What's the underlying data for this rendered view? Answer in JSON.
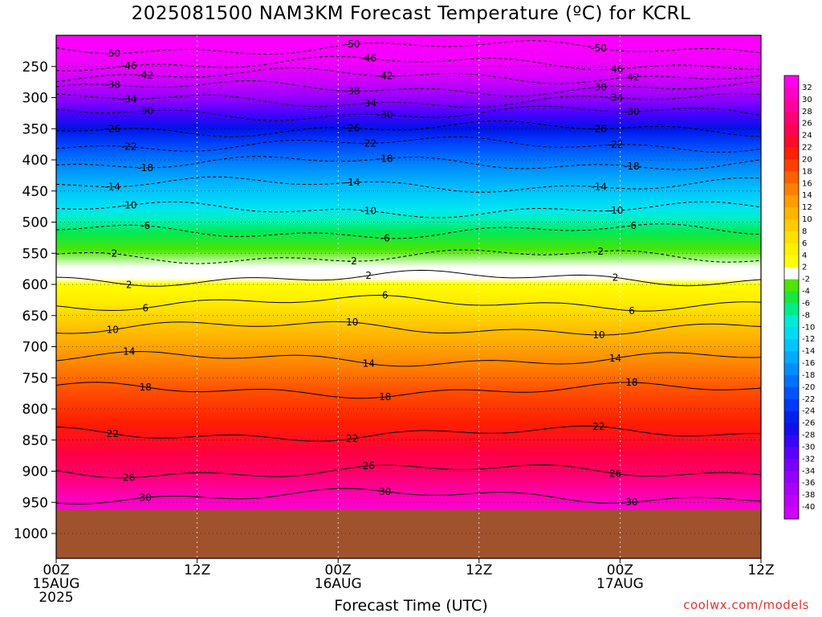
{
  "title": "2025081500 NAM3KM Forecast Temperature (ºC) for KCRL",
  "credit": "coolwx.com/models",
  "chart_data": {
    "type": "heatmap",
    "title": "2025081500 NAM3KM Forecast Temperature (ºC) for KCRL",
    "xlabel": "Forecast Time (UTC)",
    "ylabel": "",
    "x_range_hours": [
      0,
      60
    ],
    "y_axis": "pressure (hPa), inverted",
    "y_range": [
      200,
      1040
    ],
    "y_ticks": [
      250,
      300,
      350,
      400,
      450,
      500,
      550,
      600,
      650,
      700,
      750,
      800,
      850,
      900,
      950,
      1000
    ],
    "x_ticks": [
      {
        "hour": 0,
        "lines": [
          "00Z",
          "15AUG",
          "2025"
        ]
      },
      {
        "hour": 12,
        "lines": [
          "12Z"
        ]
      },
      {
        "hour": 24,
        "lines": [
          "00Z",
          "16AUG"
        ]
      },
      {
        "hour": 36,
        "lines": [
          "12Z"
        ]
      },
      {
        "hour": 48,
        "lines": [
          "00Z",
          "17AUG"
        ]
      },
      {
        "hour": 60,
        "lines": [
          "12Z"
        ]
      }
    ],
    "colorbar_labels": [
      32,
      30,
      28,
      26,
      24,
      22,
      20,
      18,
      16,
      14,
      12,
      10,
      8,
      6,
      4,
      2,
      -2,
      -4,
      -6,
      -8,
      -10,
      -12,
      -14,
      -16,
      -18,
      -20,
      -22,
      -24,
      -26,
      -28,
      -30,
      -32,
      -34,
      -36,
      -38,
      -40
    ],
    "ground_pressure_hPa": 962,
    "contour_labels_negative": [
      -50,
      -46,
      -42,
      -38,
      -34,
      -30,
      -26,
      -22,
      -18,
      -14,
      -10,
      -6,
      -2
    ],
    "contour_labels_positive": [
      2,
      6,
      10,
      14,
      18,
      22,
      26,
      30
    ],
    "isotherm_profile_approx": [
      {
        "temp": -50,
        "pressure": 220
      },
      {
        "temp": -46,
        "pressure": 245
      },
      {
        "temp": -42,
        "pressure": 265
      },
      {
        "temp": -38,
        "pressure": 285
      },
      {
        "temp": -34,
        "pressure": 305
      },
      {
        "temp": -30,
        "pressure": 325
      },
      {
        "temp": -26,
        "pressure": 350
      },
      {
        "temp": -22,
        "pressure": 375
      },
      {
        "temp": -18,
        "pressure": 405
      },
      {
        "temp": -14,
        "pressure": 440
      },
      {
        "temp": -10,
        "pressure": 480
      },
      {
        "temp": -6,
        "pressure": 515
      },
      {
        "temp": -2,
        "pressure": 555
      },
      {
        "temp": 2,
        "pressure": 590
      },
      {
        "temp": 6,
        "pressure": 630
      },
      {
        "temp": 10,
        "pressure": 670
      },
      {
        "temp": 14,
        "pressure": 720
      },
      {
        "temp": 18,
        "pressure": 770
      },
      {
        "temp": 22,
        "pressure": 840
      },
      {
        "temp": 26,
        "pressure": 900
      },
      {
        "temp": 30,
        "pressure": 940
      }
    ],
    "grid": true,
    "legend": "colorbar-right"
  }
}
